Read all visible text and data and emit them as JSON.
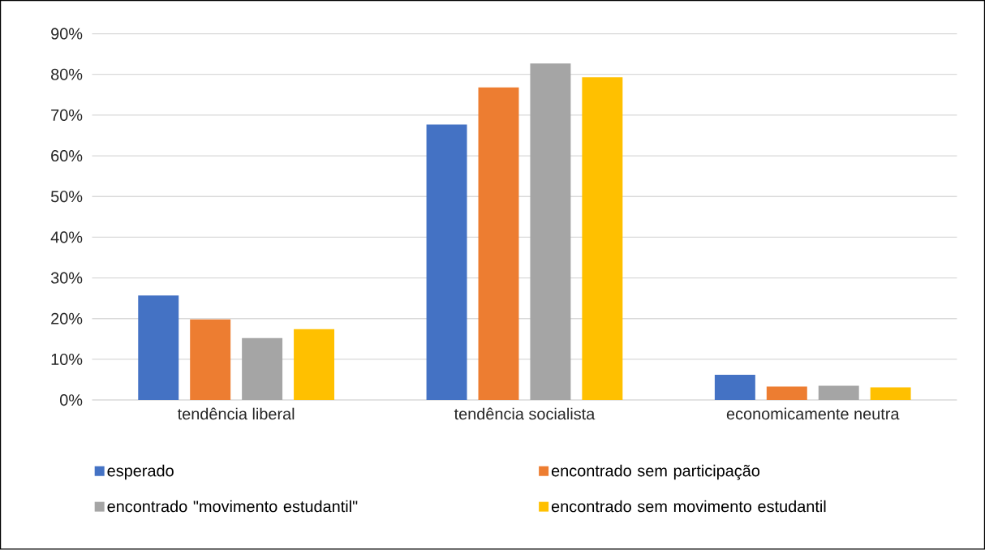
{
  "chart_data": {
    "type": "bar",
    "categories": [
      "tendência liberal",
      "tendência socialista",
      "economicamente neutra"
    ],
    "series": [
      {
        "name": "esperado",
        "color": "#4472c4",
        "values": [
          25.7,
          67.7,
          6.2
        ]
      },
      {
        "name": "encontrado sem participação",
        "color": "#ed7d31",
        "values": [
          19.8,
          76.8,
          3.3
        ]
      },
      {
        "name": "encontrado \"movimento estudantil\"",
        "color": "#a5a5a5",
        "values": [
          15.2,
          82.7,
          3.5
        ]
      },
      {
        "name": "encontrado sem movimento estudantil",
        "color": "#ffc000",
        "values": [
          17.4,
          79.3,
          3.1
        ]
      }
    ],
    "ylim": [
      0,
      90
    ],
    "yticks": [
      {
        "value": 0,
        "label": "0%"
      },
      {
        "value": 10,
        "label": "10%"
      },
      {
        "value": 20,
        "label": "20%"
      },
      {
        "value": 30,
        "label": "30%"
      },
      {
        "value": 40,
        "label": "40%"
      },
      {
        "value": 50,
        "label": "50%"
      },
      {
        "value": 60,
        "label": "60%"
      },
      {
        "value": 70,
        "label": "70%"
      },
      {
        "value": 80,
        "label": "80%"
      },
      {
        "value": 90,
        "label": "90%"
      }
    ],
    "grid": "y",
    "legend": "bottom"
  }
}
